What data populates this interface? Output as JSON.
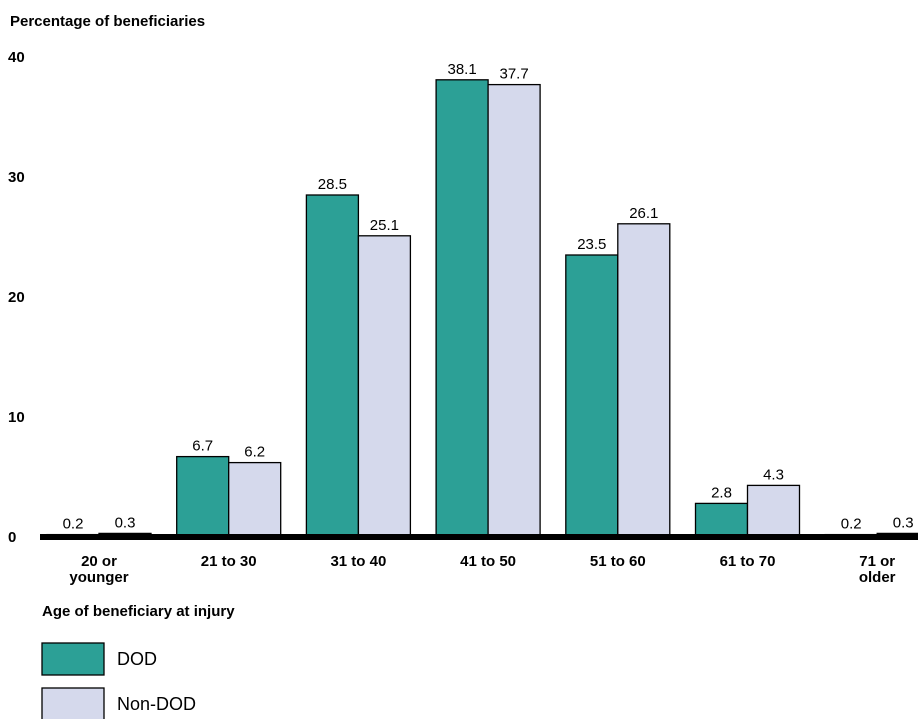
{
  "chart_data": {
    "type": "bar",
    "ylabel": "Percentage of beneficiaries",
    "xlabel": "Age of beneficiary at injury",
    "ylim": [
      0,
      40
    ],
    "yticks": [
      0,
      10,
      20,
      30,
      40
    ],
    "categories": [
      [
        "20 or",
        "younger"
      ],
      [
        "21 to 30"
      ],
      [
        "31 to 40"
      ],
      [
        "41 to 50"
      ],
      [
        "51 to 60"
      ],
      [
        "61 to 70"
      ],
      [
        "71 or",
        "older"
      ]
    ],
    "series": [
      {
        "name": "DOD",
        "color": "#2ca096",
        "values": [
          0.2,
          6.7,
          28.5,
          38.1,
          23.5,
          2.8,
          0.2
        ]
      },
      {
        "name": "Non-DOD",
        "color": "#d5d9ec",
        "values": [
          0.3,
          6.2,
          25.1,
          37.7,
          26.1,
          4.3,
          0.3
        ]
      }
    ],
    "grid": false,
    "legend": "bottom-left"
  }
}
